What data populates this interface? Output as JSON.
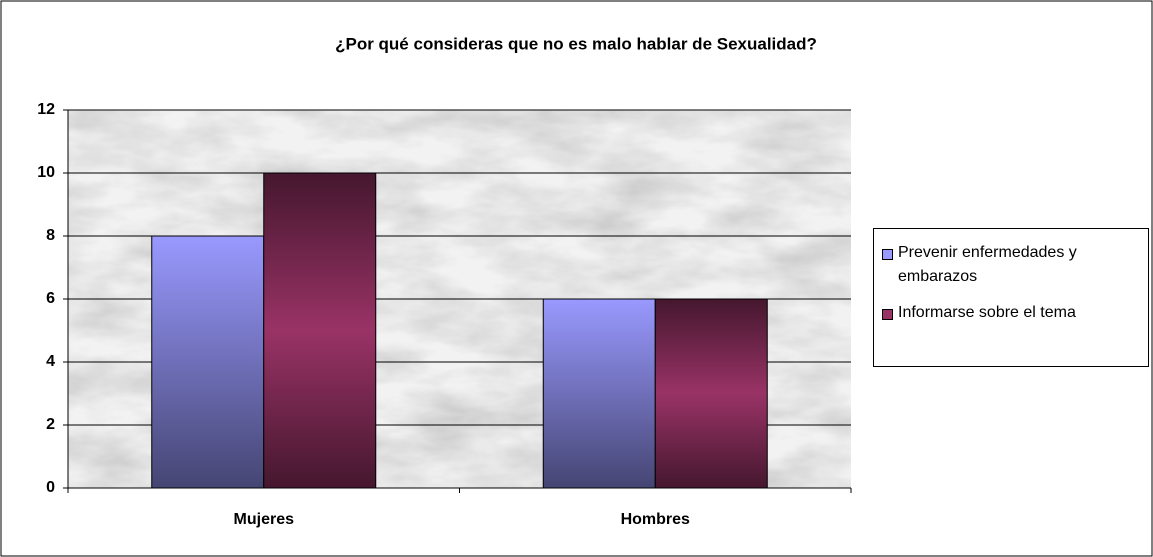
{
  "chart_data": {
    "type": "bar",
    "title": "¿Por qué consideras que no es malo hablar de Sexualidad?",
    "categories": [
      "Mujeres",
      "Hombres"
    ],
    "series": [
      {
        "name": "Prevenir enfermedades y embarazos",
        "color": "#9999ff",
        "values": [
          8,
          6
        ]
      },
      {
        "name": "Informarse sobre el tema",
        "color": "#993366",
        "values": [
          10,
          6
        ]
      }
    ],
    "ylim": [
      0,
      12
    ],
    "yticks": [
      0,
      2,
      4,
      6,
      8,
      10,
      12
    ],
    "grid": true,
    "legend": "right"
  }
}
